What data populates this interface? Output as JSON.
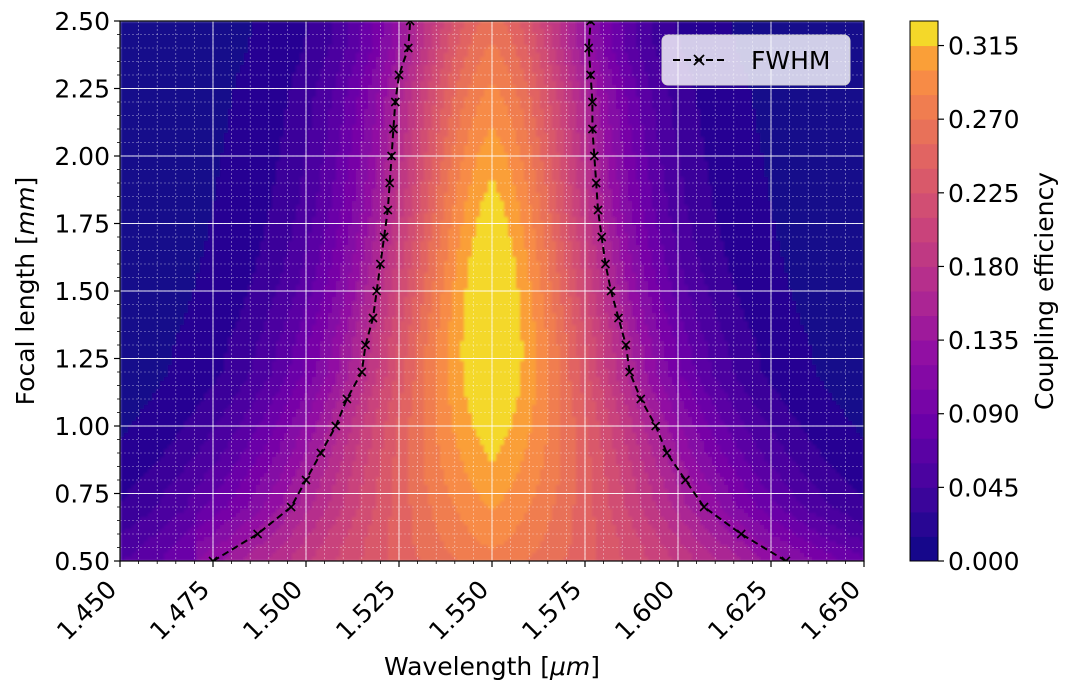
{
  "chart_data": {
    "type": "contourf",
    "xlabel": "Wavelength [",
    "xlabel_unit": "μm",
    "xlabel_close": "]",
    "ylabel": "Focal length [",
    "ylabel_unit": "mm",
    "ylabel_close": "]",
    "xlim": [
      1.45,
      1.65
    ],
    "ylim": [
      0.5,
      2.5
    ],
    "x_ticks": [
      "1.450",
      "1.475",
      "1.500",
      "1.525",
      "1.550",
      "1.575",
      "1.600",
      "1.625",
      "1.650"
    ],
    "x_tick_values": [
      1.45,
      1.475,
      1.5,
      1.525,
      1.55,
      1.575,
      1.6,
      1.625,
      1.65
    ],
    "y_ticks": [
      "0.50",
      "0.75",
      "1.00",
      "1.25",
      "1.50",
      "1.75",
      "2.00",
      "2.25",
      "2.50"
    ],
    "y_tick_values": [
      0.5,
      0.75,
      1.0,
      1.25,
      1.5,
      1.75,
      2.0,
      2.25,
      2.5
    ],
    "grid": true,
    "colormap": "plasma",
    "colorbar": {
      "label": "Coupling efficiency",
      "range": [
        0.0,
        0.33
      ],
      "levels": 22,
      "ticks": [
        "0.000",
        "0.045",
        "0.090",
        "0.135",
        "0.180",
        "0.225",
        "0.270",
        "0.315"
      ],
      "tick_values": [
        0.0,
        0.045,
        0.09,
        0.135,
        0.18,
        0.225,
        0.27,
        0.315
      ]
    },
    "peak": {
      "wavelength": 1.55,
      "focal_length": 1.3,
      "efficiency": 0.33
    },
    "fwhm_series": {
      "name": "FWHM",
      "marker": "x",
      "line": "dashed",
      "color": "#000000",
      "focal_length": [
        0.5,
        0.6,
        0.7,
        0.8,
        0.9,
        1.0,
        1.1,
        1.2,
        1.3,
        1.4,
        1.5,
        1.6,
        1.7,
        1.8,
        1.9,
        2.0,
        2.1,
        2.2,
        2.3,
        2.4,
        2.5
      ],
      "left_wavelength": [
        1.475,
        1.487,
        1.496,
        1.5,
        1.504,
        1.508,
        1.511,
        1.515,
        1.516,
        1.518,
        1.519,
        1.52,
        1.521,
        1.522,
        1.5225,
        1.523,
        1.5235,
        1.524,
        1.525,
        1.5275,
        1.528
      ],
      "right_wavelength": [
        1.629,
        1.617,
        1.607,
        1.602,
        1.597,
        1.594,
        1.59,
        1.587,
        1.586,
        1.584,
        1.582,
        1.5805,
        1.5795,
        1.5785,
        1.578,
        1.5775,
        1.577,
        1.577,
        1.5765,
        1.576,
        1.5765
      ]
    },
    "legend": {
      "entries": [
        "FWHM"
      ],
      "location": "upper right"
    }
  }
}
